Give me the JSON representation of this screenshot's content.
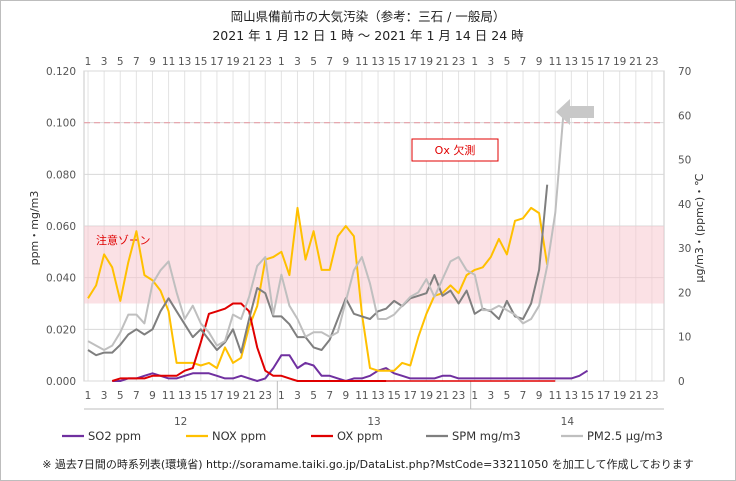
{
  "chart_data": {
    "type": "line",
    "title": "岡山県備前市の大気汚染（参考：三石 / 一般局）",
    "subtitle": "2021 年 1 月 12 日 1 時 ～ 2021 年 1 月 14 日 24 時",
    "ylabel_left": "ppm・mg/m3",
    "ylabel_right": "μg/m3・(ppmc)・℃",
    "ylim_left": [
      0,
      0.12
    ],
    "ylim_right": [
      0,
      70
    ],
    "left_ticks": [
      "0.000",
      "0.020",
      "0.040",
      "0.060",
      "0.080",
      "0.100",
      "0.120"
    ],
    "right_ticks": [
      "0",
      "10",
      "20",
      "30",
      "40",
      "50",
      "60",
      "70"
    ],
    "hour_ticks": [
      "1",
      "3",
      "5",
      "7",
      "9",
      "11",
      "13",
      "15",
      "17",
      "19",
      "21",
      "23",
      "1",
      "3",
      "5",
      "7",
      "9",
      "11",
      "13",
      "15",
      "17",
      "19",
      "21",
      "23",
      "1",
      "3",
      "5",
      "7",
      "9",
      "11",
      "13",
      "15",
      "17",
      "19",
      "21",
      "23"
    ],
    "day_labels": [
      "12",
      "13",
      "14"
    ],
    "grid": true,
    "caution_zone": {
      "label": "注意ゾーン",
      "range_left": [
        0.03,
        0.06
      ]
    },
    "reference_line_left": 0.1,
    "annotation": "Ox 欠測",
    "series": [
      {
        "name": "SO2 ppm",
        "axis": "left",
        "color": "#7030a0",
        "values": [
          0.0,
          0.0,
          0.001,
          0.001,
          0.002,
          0.003,
          0.002,
          0.001,
          0.001,
          0.002,
          0.003,
          0.003,
          0.003,
          0.002,
          0.001,
          0.001,
          0.002,
          0.001,
          0.0,
          0.001,
          0.005,
          0.01,
          0.01,
          0.005,
          0.007,
          0.006,
          0.002,
          0.002,
          0.001,
          0.0,
          0.001,
          0.001,
          0.002,
          0.004,
          0.005,
          0.003,
          0.002,
          0.001,
          0.001,
          0.001,
          0.001,
          0.002,
          0.002,
          0.001,
          0.001,
          0.001,
          0.001,
          0.001,
          0.001,
          0.001,
          0.001,
          0.001,
          0.001,
          0.001,
          0.001,
          0.001,
          0.001,
          0.001,
          0.002,
          0.004
        ]
      },
      {
        "name": "NOX ppm",
        "axis": "left",
        "color": "#ffc000",
        "values": [
          0.032,
          0.037,
          0.049,
          0.044,
          0.031,
          0.046,
          0.058,
          0.041,
          0.039,
          0.035,
          0.027,
          0.007,
          0.007,
          0.007,
          0.006,
          0.007,
          0.005,
          0.013,
          0.007,
          0.009,
          0.021,
          0.029,
          0.047,
          0.048,
          0.05,
          0.041,
          0.067,
          0.047,
          0.058,
          0.043,
          0.043,
          0.056,
          0.06,
          0.056,
          0.026,
          0.005,
          0.004,
          0.004,
          0.004,
          0.007,
          0.006,
          0.017,
          0.026,
          0.033,
          0.034,
          0.037,
          0.034,
          0.041,
          0.043,
          0.044,
          0.048,
          0.055,
          0.049,
          0.062,
          0.063,
          0.067,
          0.065,
          0.045
        ]
      },
      {
        "name": "OX ppm",
        "axis": "left",
        "color": "#e00000",
        "values": [
          0.0,
          0.001,
          0.001,
          0.001,
          0.001,
          0.002,
          0.002,
          0.002,
          0.002,
          0.004,
          0.005,
          0.015,
          0.026,
          0.027,
          0.028,
          0.03,
          0.03,
          0.027,
          0.013,
          0.004,
          0.002,
          0.002,
          0.001,
          0.0,
          0.0,
          0.0,
          0.0,
          0.0,
          0.0,
          0.0,
          0.0,
          0.0,
          0.0,
          0.0,
          0.0
        ]
      },
      {
        "name": "SPM mg/m3",
        "axis": "left",
        "color": "#7f7f7f",
        "values": [
          0.012,
          0.01,
          0.011,
          0.011,
          0.014,
          0.018,
          0.02,
          0.018,
          0.02,
          0.027,
          0.032,
          0.027,
          0.022,
          0.017,
          0.02,
          0.016,
          0.012,
          0.015,
          0.02,
          0.011,
          0.024,
          0.036,
          0.034,
          0.025,
          0.025,
          0.022,
          0.017,
          0.017,
          0.013,
          0.012,
          0.016,
          0.024,
          0.032,
          0.026,
          0.025,
          0.024,
          0.027,
          0.028,
          0.031,
          0.029,
          0.032,
          0.033,
          0.034,
          0.041,
          0.033,
          0.035,
          0.03,
          0.035,
          0.026,
          0.028,
          0.027,
          0.024,
          0.031,
          0.025,
          0.024,
          0.03,
          0.043,
          0.076
        ]
      },
      {
        "name": "PM2.5 μg/m3",
        "axis": "right",
        "color": "#bfbfbf",
        "values": [
          9,
          8,
          7,
          8,
          11,
          15,
          15,
          13,
          22,
          25,
          27,
          20,
          14,
          17,
          13,
          11,
          8,
          9,
          15,
          14,
          19,
          26,
          28,
          15,
          24,
          17,
          14,
          10,
          11,
          11,
          10,
          11,
          18,
          25,
          28,
          22,
          14,
          14,
          15,
          17,
          19,
          20,
          23,
          19,
          23,
          27,
          28,
          25,
          24,
          16,
          16,
          17,
          16,
          15,
          13,
          14,
          17,
          26,
          38,
          60
        ]
      }
    ],
    "legend": "bottom"
  },
  "footnote": "※ 過去7日間の時系列表(環境省) http://soramame.taiki.go.jp/DataList.php?MstCode=33211050 を加工して作成しております"
}
